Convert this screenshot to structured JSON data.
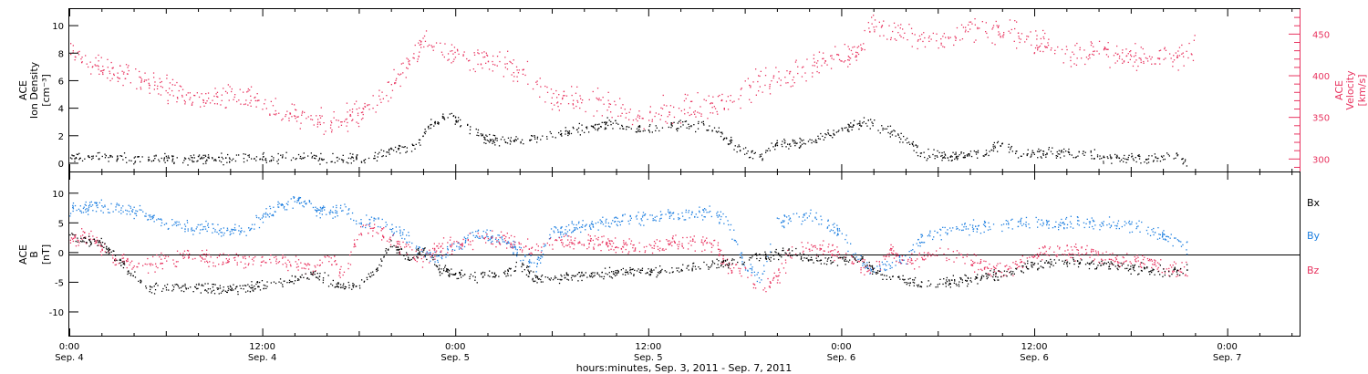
{
  "chart_data": [
    {
      "type": "scatter",
      "title": "",
      "ylabel_left": [
        "ACE",
        "Ion Density",
        "[cm⁻³]"
      ],
      "ylabel_right": [
        "ACE",
        "Velocity",
        "[km/s]"
      ],
      "ylim_left": [
        -0.6,
        11.2
      ],
      "ylim_right": [
        285,
        480
      ],
      "yticks_left": [
        "0",
        "2",
        "4",
        "6",
        "8",
        "10"
      ],
      "yticks_right": [
        "300",
        "350",
        "400",
        "450"
      ],
      "grid": false,
      "series": [
        {
          "axis": "left",
          "color": "#000000",
          "points": [
            [
              0,
              0.6
            ],
            [
              2,
              0.4
            ],
            [
              6,
              0.4
            ],
            [
              10,
              0.3
            ],
            [
              14,
              0.5
            ],
            [
              16,
              0.4
            ],
            [
              18,
              0.3
            ],
            [
              20,
              0.8
            ],
            [
              21.5,
              1.2
            ],
            [
              22.5,
              3.0
            ],
            [
              23.5,
              3.6
            ],
            [
              24.5,
              2.8
            ],
            [
              26,
              1.8
            ],
            [
              28,
              1.6
            ],
            [
              30,
              2.0
            ],
            [
              32,
              2.6
            ],
            [
              34,
              3.0
            ],
            [
              35,
              2.4
            ],
            [
              36,
              2.6
            ],
            [
              38,
              2.8
            ],
            [
              40,
              2.6
            ],
            [
              41.5,
              1.2
            ],
            [
              43,
              0.6
            ],
            [
              44,
              1.4
            ],
            [
              46,
              1.6
            ],
            [
              48,
              2.4
            ],
            [
              49.5,
              3.0
            ],
            [
              50.5,
              2.6
            ],
            [
              52,
              1.8
            ],
            [
              53,
              0.7
            ],
            [
              55,
              0.5
            ],
            [
              57,
              0.8
            ],
            [
              58,
              1.5
            ],
            [
              59,
              0.7
            ],
            [
              61,
              0.8
            ],
            [
              63,
              0.7
            ],
            [
              65,
              0.4
            ],
            [
              67,
              0.3
            ],
            [
              68.5,
              0.6
            ],
            [
              69.5,
              0.1
            ]
          ]
        },
        {
          "axis": "right",
          "color": "#e8335f",
          "points": [
            [
              0,
              427
            ],
            [
              2,
              412
            ],
            [
              4,
              400
            ],
            [
              6,
              385
            ],
            [
              8,
              368
            ],
            [
              10,
              378
            ],
            [
              12,
              365
            ],
            [
              14,
              352
            ],
            [
              16,
              343
            ],
            [
              18,
              355
            ],
            [
              20,
              385
            ],
            [
              21.5,
              428
            ],
            [
              22.2,
              448
            ],
            [
              23,
              428
            ],
            [
              25,
              420
            ],
            [
              27,
              417
            ],
            [
              28.5,
              403
            ],
            [
              30,
              373
            ],
            [
              33,
              370
            ],
            [
              35,
              352
            ],
            [
              37,
              360
            ],
            [
              39,
              363
            ],
            [
              41,
              370
            ],
            [
              43,
              395
            ],
            [
              45,
              400
            ],
            [
              47,
              420
            ],
            [
              49,
              428
            ],
            [
              50,
              462
            ],
            [
              52,
              450
            ],
            [
              54,
              445
            ],
            [
              56,
              457
            ],
            [
              58,
              455
            ],
            [
              60,
              442
            ],
            [
              62,
              430
            ],
            [
              64,
              430
            ],
            [
              66,
              425
            ],
            [
              68,
              420
            ],
            [
              69,
              422
            ],
            [
              70,
              435
            ]
          ]
        }
      ]
    },
    {
      "type": "scatter",
      "title": "",
      "ylabel_left": [
        "ACE",
        "B",
        "[nT]"
      ],
      "ylim": [
        -14,
        13.5
      ],
      "yticks": [
        "-10",
        "-5",
        "0",
        "5",
        "10"
      ],
      "xlabel": "hours:minutes, Sep.  3, 2011 - Sep.  7, 2011",
      "x_ticks_time": [
        "0:00",
        "12:00",
        "0:00",
        "12:00",
        "0:00",
        "12:00",
        "0:00"
      ],
      "x_ticks_date": [
        "Sep. 4",
        "Sep. 4",
        "Sep. 5",
        "Sep. 5",
        "Sep. 6",
        "Sep. 6",
        "Sep. 7"
      ],
      "xlim_hours": [
        0,
        76.5
      ],
      "grid": false,
      "legend": [
        "Bx",
        "By",
        "Bz"
      ],
      "legend_position": "right",
      "series": [
        {
          "name": "Bx",
          "color": "#000000",
          "points": [
            [
              0,
              3
            ],
            [
              2,
              1.5
            ],
            [
              3,
              -1
            ],
            [
              4,
              -4
            ],
            [
              5,
              -6
            ],
            [
              7,
              -5.5
            ],
            [
              9,
              -6
            ],
            [
              11,
              -5.8
            ],
            [
              13,
              -5
            ],
            [
              15,
              -3.5
            ],
            [
              16,
              -4.5
            ],
            [
              17,
              -6
            ],
            [
              18,
              -5
            ],
            [
              19,
              -3
            ],
            [
              20,
              1.5
            ],
            [
              21,
              -1
            ],
            [
              22,
              0.5
            ],
            [
              23,
              -3
            ],
            [
              25,
              -4
            ],
            [
              27,
              -3.5
            ],
            [
              28,
              -2
            ],
            [
              29,
              -4.5
            ],
            [
              31,
              -4
            ],
            [
              33,
              -3.5
            ],
            [
              35,
              -3.2
            ],
            [
              37,
              -3
            ],
            [
              39,
              -2.5
            ],
            [
              41,
              -1.5
            ],
            [
              43,
              -0.5
            ],
            [
              45,
              0
            ],
            [
              47,
              -1.5
            ],
            [
              49,
              -0.5
            ],
            [
              50,
              -3
            ],
            [
              52,
              -4.8
            ],
            [
              54,
              -5
            ],
            [
              56,
              -4.5
            ],
            [
              58,
              -3.5
            ],
            [
              60,
              -2
            ],
            [
              62,
              -1.5
            ],
            [
              64,
              -1.8
            ],
            [
              66,
              -2.5
            ],
            [
              68,
              -3.2
            ],
            [
              69.5,
              -2.8
            ]
          ]
        },
        {
          "name": "By",
          "color": "#1e7fe0",
          "points": [
            [
              0,
              7.2
            ],
            [
              2,
              8
            ],
            [
              4,
              7
            ],
            [
              5,
              6
            ],
            [
              7,
              4.5
            ],
            [
              9,
              4
            ],
            [
              10,
              3.5
            ],
            [
              11,
              4
            ],
            [
              12,
              6
            ],
            [
              13,
              8
            ],
            [
              14,
              9
            ],
            [
              15,
              8
            ],
            [
              16,
              6.5
            ],
            [
              17,
              7.5
            ],
            [
              18,
              4.5
            ],
            [
              19,
              6
            ],
            [
              20,
              4
            ],
            [
              21,
              2.5
            ],
            [
              22,
              0
            ],
            [
              23,
              -1
            ],
            [
              25,
              3
            ],
            [
              27,
              2.5
            ],
            [
              28,
              0
            ],
            [
              29,
              -2
            ],
            [
              30,
              3.5
            ],
            [
              32,
              4.5
            ],
            [
              34,
              5.5
            ],
            [
              36,
              6
            ],
            [
              38,
              6.5
            ],
            [
              40,
              7
            ],
            [
              41,
              5
            ],
            [
              42,
              -2
            ],
            [
              43,
              -4
            ],
            [
              44,
              5
            ],
            [
              46,
              6.5
            ],
            [
              47,
              5
            ],
            [
              48,
              3
            ],
            [
              49,
              -1
            ],
            [
              50,
              -3
            ],
            [
              51,
              -2
            ],
            [
              52,
              -1
            ],
            [
              53,
              2.5
            ],
            [
              55,
              4
            ],
            [
              57,
              4.5
            ],
            [
              59,
              5
            ],
            [
              61,
              5
            ],
            [
              63,
              5
            ],
            [
              65,
              5
            ],
            [
              67,
              4
            ],
            [
              68,
              3
            ],
            [
              69.5,
              1
            ]
          ]
        },
        {
          "name": "Bz",
          "color": "#e8335f",
          "points": [
            [
              0,
              2
            ],
            [
              1,
              3
            ],
            [
              2,
              1
            ],
            [
              3,
              -1.5
            ],
            [
              5,
              -2
            ],
            [
              7,
              -0.5
            ],
            [
              9,
              -1
            ],
            [
              11,
              -1.5
            ],
            [
              13,
              -1
            ],
            [
              14,
              -2
            ],
            [
              15,
              -3
            ],
            [
              16,
              0
            ],
            [
              17,
              -4
            ],
            [
              18,
              3.5
            ],
            [
              19,
              4
            ],
            [
              20,
              2
            ],
            [
              21,
              0.5
            ],
            [
              22,
              -1
            ],
            [
              23,
              1
            ],
            [
              25,
              2
            ],
            [
              27,
              2.5
            ],
            [
              28,
              1
            ],
            [
              29,
              1
            ],
            [
              30,
              2
            ],
            [
              32,
              2
            ],
            [
              34,
              1.5
            ],
            [
              36,
              1
            ],
            [
              38,
              2
            ],
            [
              40,
              1.5
            ],
            [
              41,
              -2.5
            ],
            [
              42,
              -3
            ],
            [
              43,
              -6.5
            ],
            [
              44,
              -4
            ],
            [
              45,
              0.5
            ],
            [
              47,
              1
            ],
            [
              48,
              -0.5
            ],
            [
              49,
              -1.5
            ],
            [
              50,
              -3
            ],
            [
              51,
              0.5
            ],
            [
              52,
              -2
            ],
            [
              53,
              -0.5
            ],
            [
              55,
              0
            ],
            [
              57,
              -2.5
            ],
            [
              58,
              -3
            ],
            [
              59,
              -2
            ],
            [
              60,
              -0.5
            ],
            [
              61,
              0.5
            ],
            [
              63,
              0.2
            ],
            [
              65,
              -1
            ],
            [
              67,
              -1.5
            ],
            [
              68,
              -2.5
            ],
            [
              69.5,
              -3
            ]
          ]
        }
      ]
    }
  ]
}
